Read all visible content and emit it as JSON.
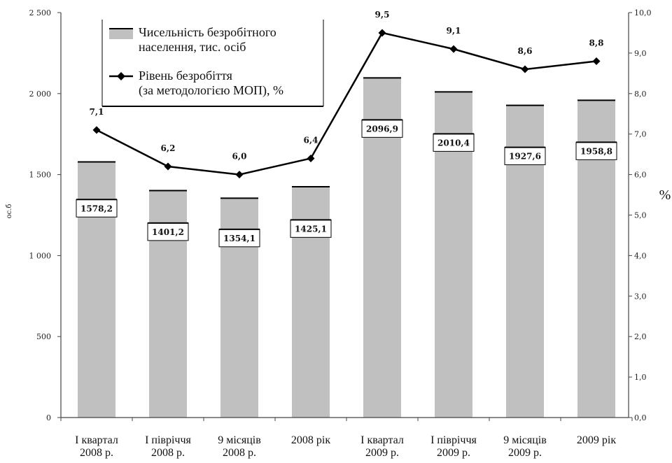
{
  "chart_data": {
    "type": "bar",
    "categories": [
      [
        "І квартал",
        "2008 р."
      ],
      [
        "І півріччя",
        "2008 р."
      ],
      [
        "9 місяців",
        "2008 р."
      ],
      [
        "2008 рік"
      ],
      [
        "І квартал",
        "2009 р."
      ],
      [
        "І півріччя",
        "2009 р."
      ],
      [
        "9 місяців",
        "2009 р."
      ],
      [
        "2009 рік"
      ]
    ],
    "series": [
      {
        "name": "Чисельність безробітного населення, тис. осіб",
        "type": "bar",
        "axis": "left",
        "values": [
          1578.2,
          1401.2,
          1354.1,
          1425.1,
          2096.9,
          2010.4,
          1927.6,
          1958.8
        ],
        "labels": [
          "1578,2",
          "1401,2",
          "1354,1",
          "1425,1",
          "2096,9",
          "2010,4",
          "1927,6",
          "1958,8"
        ],
        "color": "#c0c0c0"
      },
      {
        "name": "Рівень безробіття (за методологією МОП), %",
        "type": "line",
        "axis": "right",
        "values": [
          7.1,
          6.2,
          6.0,
          6.4,
          9.5,
          9.1,
          8.6,
          8.8
        ],
        "labels": [
          "7,1",
          "6,2",
          "6,0",
          "6,4",
          "9,5",
          "9,1",
          "8,6",
          "8,8"
        ],
        "color": "#000000"
      }
    ],
    "legend_lines": [
      [
        "Чисельність безробітного",
        "населення, тис. осіб"
      ],
      [
        "Рівень безробіття",
        "(за методологією МОП), %"
      ]
    ],
    "y_left": {
      "label": "ос.б",
      "ylim": [
        0,
        2500
      ],
      "ticks": [
        0,
        500,
        1000,
        1500,
        2000,
        2500
      ],
      "tick_labels": [
        "0",
        "500",
        "1 000",
        "1 500",
        "2 000",
        "2 500"
      ]
    },
    "y_right": {
      "label": "%",
      "ylim": [
        0,
        10
      ],
      "ticks": [
        0,
        1,
        2,
        3,
        4,
        5,
        6,
        7,
        8,
        9,
        10
      ],
      "tick_labels": [
        "0,0",
        "1,0",
        "2,0",
        "3,0",
        "4,0",
        "5,0",
        "6,0",
        "7,0",
        "8,0",
        "9,0",
        "10,0"
      ]
    },
    "grid": false,
    "legend_position": "top-left"
  }
}
